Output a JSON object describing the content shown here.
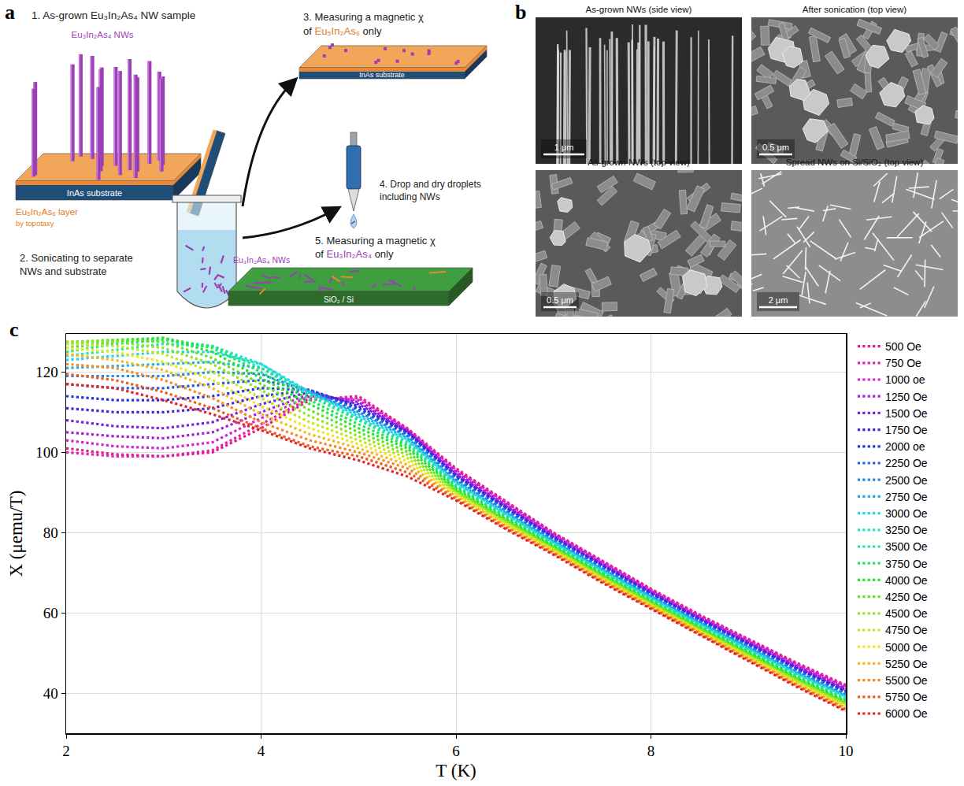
{
  "panel_a": {
    "letter": "a",
    "step1": "1. As-grown Eu₃In₂As₄ NW sample",
    "nw_label": "Eu₃In₂As₄ NWs",
    "layer_label": "Eu₅In₂As₆ layer",
    "layer_note": "by topotaxy",
    "substrate_label": "InAs substrate",
    "step2": [
      "2. Sonicating to separate",
      "NWs and substrate"
    ],
    "step3": {
      "line1": "3. Measuring a magnetic χ",
      "line2": [
        "of ",
        "Eu₅In₂As₆",
        " only"
      ]
    },
    "step3_substrate": "InAs substrate",
    "step4": [
      "4. Drop and dry droplets",
      "including NWs"
    ],
    "step5": {
      "line1": "5. Measuring a magnetic χ",
      "line2": [
        "of ",
        "Eu₃In₂As₄",
        " only"
      ]
    },
    "step5_nw_label": "Eu₃In₂As₄ NWs",
    "step5_substrate": "SiO₂ / Si"
  },
  "panel_b": {
    "letter": "b",
    "images": [
      {
        "title": "As-grown NWs (side view)",
        "scale_bar": "1 μm"
      },
      {
        "title": "After sonication (top view)",
        "scale_bar": "0.5 μm"
      },
      {
        "title": "As-grown NWs (top view)",
        "scale_bar": "0.5 μm"
      },
      {
        "title": "Spread NWs on Si/SiO₂ (top view)",
        "scale_bar": "2 μm"
      }
    ]
  },
  "chart_data": {
    "letter": "c",
    "type": "line",
    "line_style": "dotted",
    "xlabel": "T (K)",
    "ylabel": "X (μemu/T)",
    "xlim": [
      2,
      10
    ],
    "ylim": [
      30,
      129.5
    ],
    "xticks": [
      2,
      4,
      6,
      8,
      10
    ],
    "yticks": [
      40,
      60,
      80,
      100,
      120
    ],
    "grid": true,
    "legend": "right",
    "x": [
      2,
      2.5,
      3,
      3.5,
      4,
      4.5,
      5,
      5.5,
      6,
      6.5,
      7,
      7.5,
      8,
      8.5,
      9,
      9.5,
      10
    ],
    "series": [
      {
        "name": "500 Oe",
        "color": "#e8198b",
        "values": [
          101,
          99.5,
          99,
          100,
          106,
          113,
          114,
          106,
          96,
          88,
          80,
          73,
          66,
          59.5,
          53.5,
          47.5,
          42
        ]
      },
      {
        "name": "750 Oe",
        "color": "#e61fb0",
        "values": [
          100,
          99,
          99,
          100.5,
          107,
          113.5,
          113.5,
          105.8,
          95.6,
          87.7,
          79.8,
          72.8,
          65.8,
          59.3,
          53.3,
          47.2,
          41.7
        ]
      },
      {
        "name": "1000 oe",
        "color": "#d81fd8",
        "values": [
          103,
          101.5,
          101,
          102.5,
          108.5,
          114,
          113,
          105.6,
          95.3,
          87.4,
          79.5,
          72.5,
          65.5,
          59,
          53,
          47,
          41.4
        ]
      },
      {
        "name": "1250 Oe",
        "color": "#a61fe0",
        "values": [
          105,
          104,
          103.5,
          105,
          110,
          114.5,
          112.5,
          105.4,
          94.9,
          87,
          79.3,
          72.3,
          65.3,
          58.8,
          52.8,
          46.7,
          41.1
        ]
      },
      {
        "name": "1500 Oe",
        "color": "#7a1fe0",
        "values": [
          108,
          106.5,
          106,
          107.5,
          112,
          115,
          112,
          105.2,
          94.5,
          86.7,
          79,
          72,
          65.1,
          58.6,
          52.5,
          46.4,
          40.8
        ]
      },
      {
        "name": "1750 Oe",
        "color": "#4a22e0",
        "values": [
          111,
          110,
          110,
          111,
          114,
          115.5,
          111.5,
          105,
          94.2,
          86.4,
          78.8,
          71.8,
          64.9,
          58.4,
          52.3,
          46.1,
          40.5
        ]
      },
      {
        "name": "2000 oe",
        "color": "#2233e6",
        "values": [
          114,
          113,
          113,
          114,
          116,
          115.5,
          111,
          104.7,
          93.8,
          86.1,
          78.5,
          71.5,
          64.6,
          58.1,
          52,
          45.9,
          40.2
        ]
      },
      {
        "name": "2250 Oe",
        "color": "#1f5fe6",
        "values": [
          117,
          116,
          116,
          117,
          118,
          115.5,
          110.5,
          104.4,
          93.5,
          85.8,
          78.3,
          71.3,
          64.4,
          57.9,
          51.8,
          45.6,
          39.9
        ]
      },
      {
        "name": "2500 Oe",
        "color": "#1f8ae6",
        "values": [
          119,
          119,
          119,
          120,
          119.5,
          115,
          110,
          104,
          93.1,
          85.5,
          78,
          71,
          64.2,
          57.7,
          51.5,
          45.3,
          39.6
        ]
      },
      {
        "name": "2750 Oe",
        "color": "#1fb0e6",
        "values": [
          121,
          121.5,
          122,
          122.5,
          121,
          115,
          109.5,
          103.6,
          92.7,
          85.1,
          77.8,
          70.8,
          64,
          57.5,
          51.3,
          45,
          39.3
        ]
      },
      {
        "name": "3000 Oe",
        "color": "#1fd6e6",
        "values": [
          123,
          124,
          125,
          125,
          122,
          115,
          109,
          103.2,
          92.4,
          84.8,
          77.5,
          70.5,
          63.7,
          57.2,
          51,
          44.8,
          39.1
        ]
      },
      {
        "name": "3250 Oe",
        "color": "#1fe6c0",
        "values": [
          124,
          125.5,
          127,
          126.5,
          122,
          114.5,
          108.5,
          102.8,
          92,
          84.5,
          77.3,
          70.3,
          63.5,
          57,
          50.8,
          44.5,
          38.8
        ]
      },
      {
        "name": "3500 Oe",
        "color": "#1fe68f",
        "values": [
          125,
          127,
          128,
          126.5,
          121,
          114,
          108,
          102.2,
          91.6,
          84.2,
          77,
          70,
          63.3,
          56.8,
          50.5,
          44.2,
          38.5
        ]
      },
      {
        "name": "3750 Oe",
        "color": "#1fe65c",
        "values": [
          126,
          127.5,
          128.5,
          126,
          120,
          113,
          107,
          101.6,
          91.3,
          83.9,
          76.8,
          69.8,
          63,
          56.5,
          50.3,
          44,
          38.2
        ]
      },
      {
        "name": "4000 Oe",
        "color": "#22e62a",
        "values": [
          127,
          128,
          128.5,
          125,
          118.5,
          112,
          106,
          101,
          90.9,
          83.5,
          76.5,
          69.5,
          62.8,
          56.3,
          50,
          43.7,
          37.9
        ]
      },
      {
        "name": "4250 Oe",
        "color": "#5ee61f",
        "values": [
          127.5,
          128,
          127.5,
          123.5,
          117,
          110.5,
          105,
          100.2,
          90.5,
          83.2,
          76.3,
          69.3,
          62.6,
          56.1,
          49.8,
          43.4,
          37.6
        ]
      },
      {
        "name": "4500 Oe",
        "color": "#90e61f",
        "values": [
          127.5,
          127.5,
          126,
          122,
          115.5,
          109,
          104,
          99.4,
          90.2,
          82.9,
          76,
          69,
          62.4,
          55.9,
          49.5,
          43.1,
          37.3
        ]
      },
      {
        "name": "4750 Oe",
        "color": "#c4e61f",
        "values": [
          127,
          126.5,
          124.5,
          120,
          113.5,
          107.5,
          103,
          98.6,
          89.8,
          82.6,
          75.8,
          68.8,
          62.1,
          55.6,
          49.3,
          42.9,
          37
        ]
      },
      {
        "name": "5000 Oe",
        "color": "#f0e61f",
        "values": [
          126,
          125,
          122.5,
          118,
          111.5,
          106,
          102,
          97.8,
          89.5,
          82.3,
          75.5,
          68.5,
          61.9,
          55.4,
          49,
          42.6,
          36.7
        ]
      },
      {
        "name": "5250 Oe",
        "color": "#f5b81f",
        "values": [
          124.5,
          123,
          120.5,
          116,
          109.5,
          104.5,
          101,
          96.9,
          89.1,
          82,
          75.3,
          68.3,
          61.7,
          55.2,
          48.8,
          42.3,
          36.4
        ]
      },
      {
        "name": "5500 Oe",
        "color": "#f58a1f",
        "values": [
          122,
          121,
          118,
          113.5,
          107.5,
          103,
          100,
          96,
          88.7,
          81.6,
          75,
          68,
          61.5,
          55,
          48.5,
          42,
          36.1
        ]
      },
      {
        "name": "5750 Oe",
        "color": "#f05a1f",
        "values": [
          119.5,
          118,
          115,
          111,
          106,
          101.5,
          99,
          95,
          88.4,
          81.3,
          74.8,
          67.8,
          61.2,
          54.7,
          48.3,
          41.8,
          35.8
        ]
      },
      {
        "name": "6000 Oe",
        "color": "#e6231f",
        "values": [
          117,
          116,
          113,
          109.5,
          105.5,
          101,
          98,
          94,
          88,
          81,
          74.5,
          67.5,
          61,
          54.5,
          48,
          41.5,
          35.5
        ]
      }
    ]
  }
}
